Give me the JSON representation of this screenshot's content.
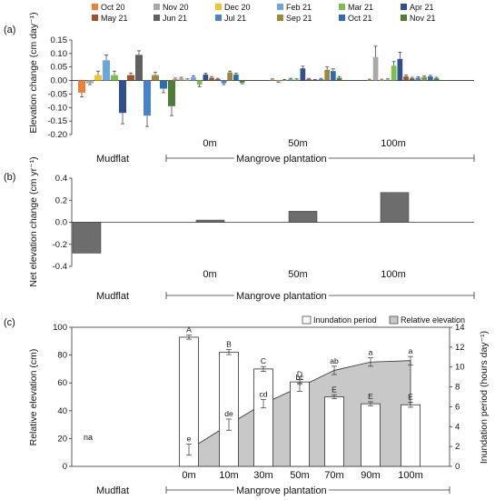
{
  "chart_data": [
    {
      "panel": "(a)",
      "type": "bar",
      "ylabel": "Elevation change (cm day⁻¹)",
      "ylim": [
        -0.2,
        0.15
      ],
      "yticks": [
        "-0.20",
        "-0.15",
        "-0.10",
        "-0.05",
        "0.00",
        "0.05",
        "0.10",
        "0.15"
      ],
      "categories": [
        "Mudflat",
        "0m",
        "50m",
        "100m"
      ],
      "group_label": "Mangrove plantation",
      "series": [
        {
          "name": "Oct 20",
          "color": "#e8823a",
          "values": [
            -0.045,
            0.005,
            0.003,
            0.002
          ],
          "errors": [
            0.015,
            0.004,
            0.003,
            0.003
          ]
        },
        {
          "name": "Nov 20",
          "color": "#a9a9a9",
          "values": [
            -0.01,
            0.008,
            -0.003,
            0.087
          ],
          "errors": [
            0.005,
            0.004,
            0.003,
            0.04
          ]
        },
        {
          "name": "Dec 20",
          "color": "#f2c12e",
          "values": [
            0.02,
            0.003,
            0.002,
            0.002
          ],
          "errors": [
            0.015,
            0.003,
            0.002,
            0.003
          ]
        },
        {
          "name": "Feb 21",
          "color": "#6aa8dc",
          "values": [
            0.075,
            0.013,
            0.005,
            0.003
          ],
          "errors": [
            0.02,
            0.005,
            0.003,
            0.003
          ]
        },
        {
          "name": "Mar 21",
          "color": "#7cbf4a",
          "values": [
            0.02,
            -0.015,
            0.003,
            0.055
          ],
          "errors": [
            0.015,
            0.008,
            0.003,
            0.015
          ]
        },
        {
          "name": "Apr 21",
          "color": "#2f4f8f",
          "values": [
            -0.12,
            0.022,
            0.045,
            0.08
          ],
          "errors": [
            0.04,
            0.005,
            0.008,
            0.025
          ]
        },
        {
          "name": "May 21",
          "color": "#a0522d",
          "values": [
            0.02,
            0.01,
            0.005,
            0.015
          ],
          "errors": [
            0.008,
            0.005,
            0.003,
            0.005
          ]
        },
        {
          "name": "Jun 21",
          "color": "#606060",
          "values": [
            0.095,
            0.005,
            0.002,
            0.008
          ],
          "errors": [
            0.015,
            0.003,
            0.002,
            0.004
          ]
        },
        {
          "name": "Jul 21",
          "color": "#4a82c8",
          "values": [
            -0.13,
            -0.01,
            0.005,
            0.01
          ],
          "errors": [
            0.04,
            0.005,
            0.003,
            0.004
          ]
        },
        {
          "name": "Sep 21",
          "color": "#9a8a3a",
          "values": [
            0.02,
            0.03,
            0.04,
            0.013
          ],
          "errors": [
            0.01,
            0.005,
            0.01,
            0.004
          ]
        },
        {
          "name": "Oct 21",
          "color": "#2b6cb0",
          "values": [
            -0.03,
            0.022,
            0.035,
            0.015
          ],
          "errors": [
            0.015,
            0.005,
            0.008,
            0.004
          ]
        },
        {
          "name": "Nov 21",
          "color": "#4e7d34",
          "values": [
            -0.095,
            -0.008,
            0.01,
            0.008
          ],
          "errors": [
            0.035,
            0.004,
            0.005,
            0.004
          ]
        }
      ]
    },
    {
      "panel": "(b)",
      "type": "bar",
      "ylabel": "Net elevation change (cm yr⁻¹)",
      "ylim": [
        -0.4,
        0.4
      ],
      "yticks": [
        "-0.4",
        "-0.2",
        "0.0",
        "0.2",
        "0.4"
      ],
      "categories": [
        "Mudflat",
        "0m",
        "50m",
        "100m"
      ],
      "group_label": "Mangrove plantation",
      "values": [
        -0.28,
        0.02,
        0.1,
        0.27
      ]
    },
    {
      "panel": "(c)",
      "type": "bar+area",
      "ylabel": "Relative elevation (cm)",
      "y2label": "Inundation period (hours day⁻¹)",
      "ylim": [
        0,
        100
      ],
      "yticks": [
        "0",
        "20",
        "40",
        "60",
        "80",
        "100"
      ],
      "y2lim": [
        0,
        14
      ],
      "y2ticks": [
        "0",
        "2",
        "4",
        "6",
        "8",
        "10",
        "12",
        "14"
      ],
      "categories": [
        "Mudflat",
        "0m",
        "10m",
        "30m",
        "50m",
        "70m",
        "90m",
        "100m"
      ],
      "group_label": "Mangrove plantation",
      "legend": [
        "Inundation period",
        "Relative elevation"
      ],
      "mudflat_note": "na",
      "inundation": {
        "values": [
          13.0,
          11.5,
          9.8,
          8.5,
          7.0,
          6.3,
          6.2
        ],
        "errors": [
          0.2,
          0.25,
          0.25,
          0.25,
          0.2,
          0.2,
          0.25
        ],
        "letters": [
          "A",
          "B",
          "C",
          "D",
          "E",
          "E",
          "E"
        ]
      },
      "relative_elevation": {
        "values": [
          12,
          30,
          45,
          57,
          69,
          75,
          76
        ],
        "errors": [
          4,
          4,
          3,
          3,
          3,
          3,
          3
        ],
        "letters": [
          "e",
          "de",
          "cd",
          "bc",
          "ab",
          "a",
          "a"
        ]
      }
    }
  ]
}
